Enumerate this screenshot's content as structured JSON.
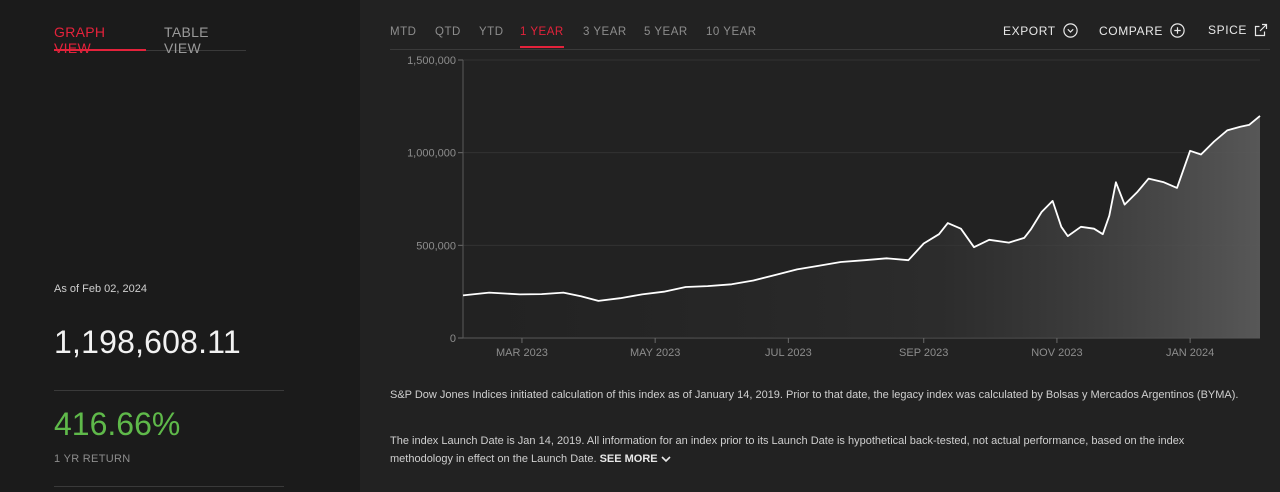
{
  "view_tabs": {
    "graph": "GRAPH VIEW",
    "table": "TABLE VIEW"
  },
  "summary": {
    "as_of": "As of Feb 02, 2024",
    "value": "1,198,608.11",
    "return_value": "416.66%",
    "return_label": "1 YR RETURN"
  },
  "periods": [
    "MTD",
    "QTD",
    "YTD",
    "1 YEAR",
    "3 YEAR",
    "5 YEAR",
    "10 YEAR"
  ],
  "active_period": "1 YEAR",
  "actions": {
    "export": "EXPORT",
    "compare": "COMPARE",
    "spice": "SPICE"
  },
  "colors": {
    "accent": "#e4223b",
    "positive": "#5fb94a",
    "line": "#ffffff"
  },
  "icons": {
    "export": "chevron-down-circle-icon",
    "compare": "plus-circle-icon",
    "spice": "external-link-icon",
    "see_more": "chevron-down-icon"
  },
  "chart_data": {
    "type": "area",
    "ylim": [
      0,
      1500000
    ],
    "yticks": [
      0,
      500000,
      1000000,
      1500000
    ],
    "ytick_labels": [
      "0",
      "500,000",
      "1,000,000",
      "1,500,000"
    ],
    "xticks": [
      "2023-03-01",
      "2023-05-01",
      "2023-07-01",
      "2023-09-01",
      "2023-11-01",
      "2024-01-01"
    ],
    "xtick_labels": [
      "MAR 2023",
      "MAY 2023",
      "JUL 2023",
      "SEP 2023",
      "NOV 2023",
      "JAN 2024"
    ],
    "grid": true,
    "series": [
      {
        "values": [
          [
            "2023-02-02",
            230000
          ],
          [
            "2023-02-14",
            245000
          ],
          [
            "2023-02-28",
            235000
          ],
          [
            "2023-03-10",
            237000
          ],
          [
            "2023-03-20",
            245000
          ],
          [
            "2023-03-28",
            225000
          ],
          [
            "2023-04-05",
            200000
          ],
          [
            "2023-04-15",
            215000
          ],
          [
            "2023-04-25",
            235000
          ],
          [
            "2023-05-05",
            250000
          ],
          [
            "2023-05-15",
            275000
          ],
          [
            "2023-05-25",
            280000
          ],
          [
            "2023-06-05",
            290000
          ],
          [
            "2023-06-15",
            310000
          ],
          [
            "2023-06-25",
            340000
          ],
          [
            "2023-07-05",
            370000
          ],
          [
            "2023-07-15",
            390000
          ],
          [
            "2023-07-25",
            410000
          ],
          [
            "2023-08-05",
            420000
          ],
          [
            "2023-08-15",
            430000
          ],
          [
            "2023-08-25",
            420000
          ],
          [
            "2023-09-01",
            510000
          ],
          [
            "2023-09-08",
            560000
          ],
          [
            "2023-09-12",
            620000
          ],
          [
            "2023-09-18",
            590000
          ],
          [
            "2023-09-24",
            490000
          ],
          [
            "2023-10-01",
            530000
          ],
          [
            "2023-10-10",
            515000
          ],
          [
            "2023-10-17",
            540000
          ],
          [
            "2023-10-20",
            585000
          ],
          [
            "2023-10-25",
            680000
          ],
          [
            "2023-10-30",
            740000
          ],
          [
            "2023-11-03",
            600000
          ],
          [
            "2023-11-06",
            550000
          ],
          [
            "2023-11-12",
            600000
          ],
          [
            "2023-11-18",
            590000
          ],
          [
            "2023-11-22",
            560000
          ],
          [
            "2023-11-25",
            660000
          ],
          [
            "2023-11-28",
            840000
          ],
          [
            "2023-12-02",
            720000
          ],
          [
            "2023-12-08",
            790000
          ],
          [
            "2023-12-13",
            860000
          ],
          [
            "2023-12-20",
            840000
          ],
          [
            "2023-12-26",
            810000
          ],
          [
            "2024-01-01",
            1010000
          ],
          [
            "2024-01-06",
            990000
          ],
          [
            "2024-01-12",
            1060000
          ],
          [
            "2024-01-18",
            1120000
          ],
          [
            "2024-01-24",
            1140000
          ],
          [
            "2024-01-28",
            1150000
          ],
          [
            "2024-02-02",
            1198608
          ]
        ]
      }
    ]
  },
  "disclaimer": {
    "para1": "S&P Dow Jones Indices initiated calculation of this index as of January 14, 2019. Prior to that date, the legacy index was calculated by Bolsas y Mercados Argentinos (BYMA).",
    "para2": "The index Launch Date is Jan 14, 2019. All information for an index prior to its Launch Date is hypothetical back-tested, not actual performance, based on the index methodology in effect on the Launch Date.",
    "see_more": "SEE MORE"
  }
}
